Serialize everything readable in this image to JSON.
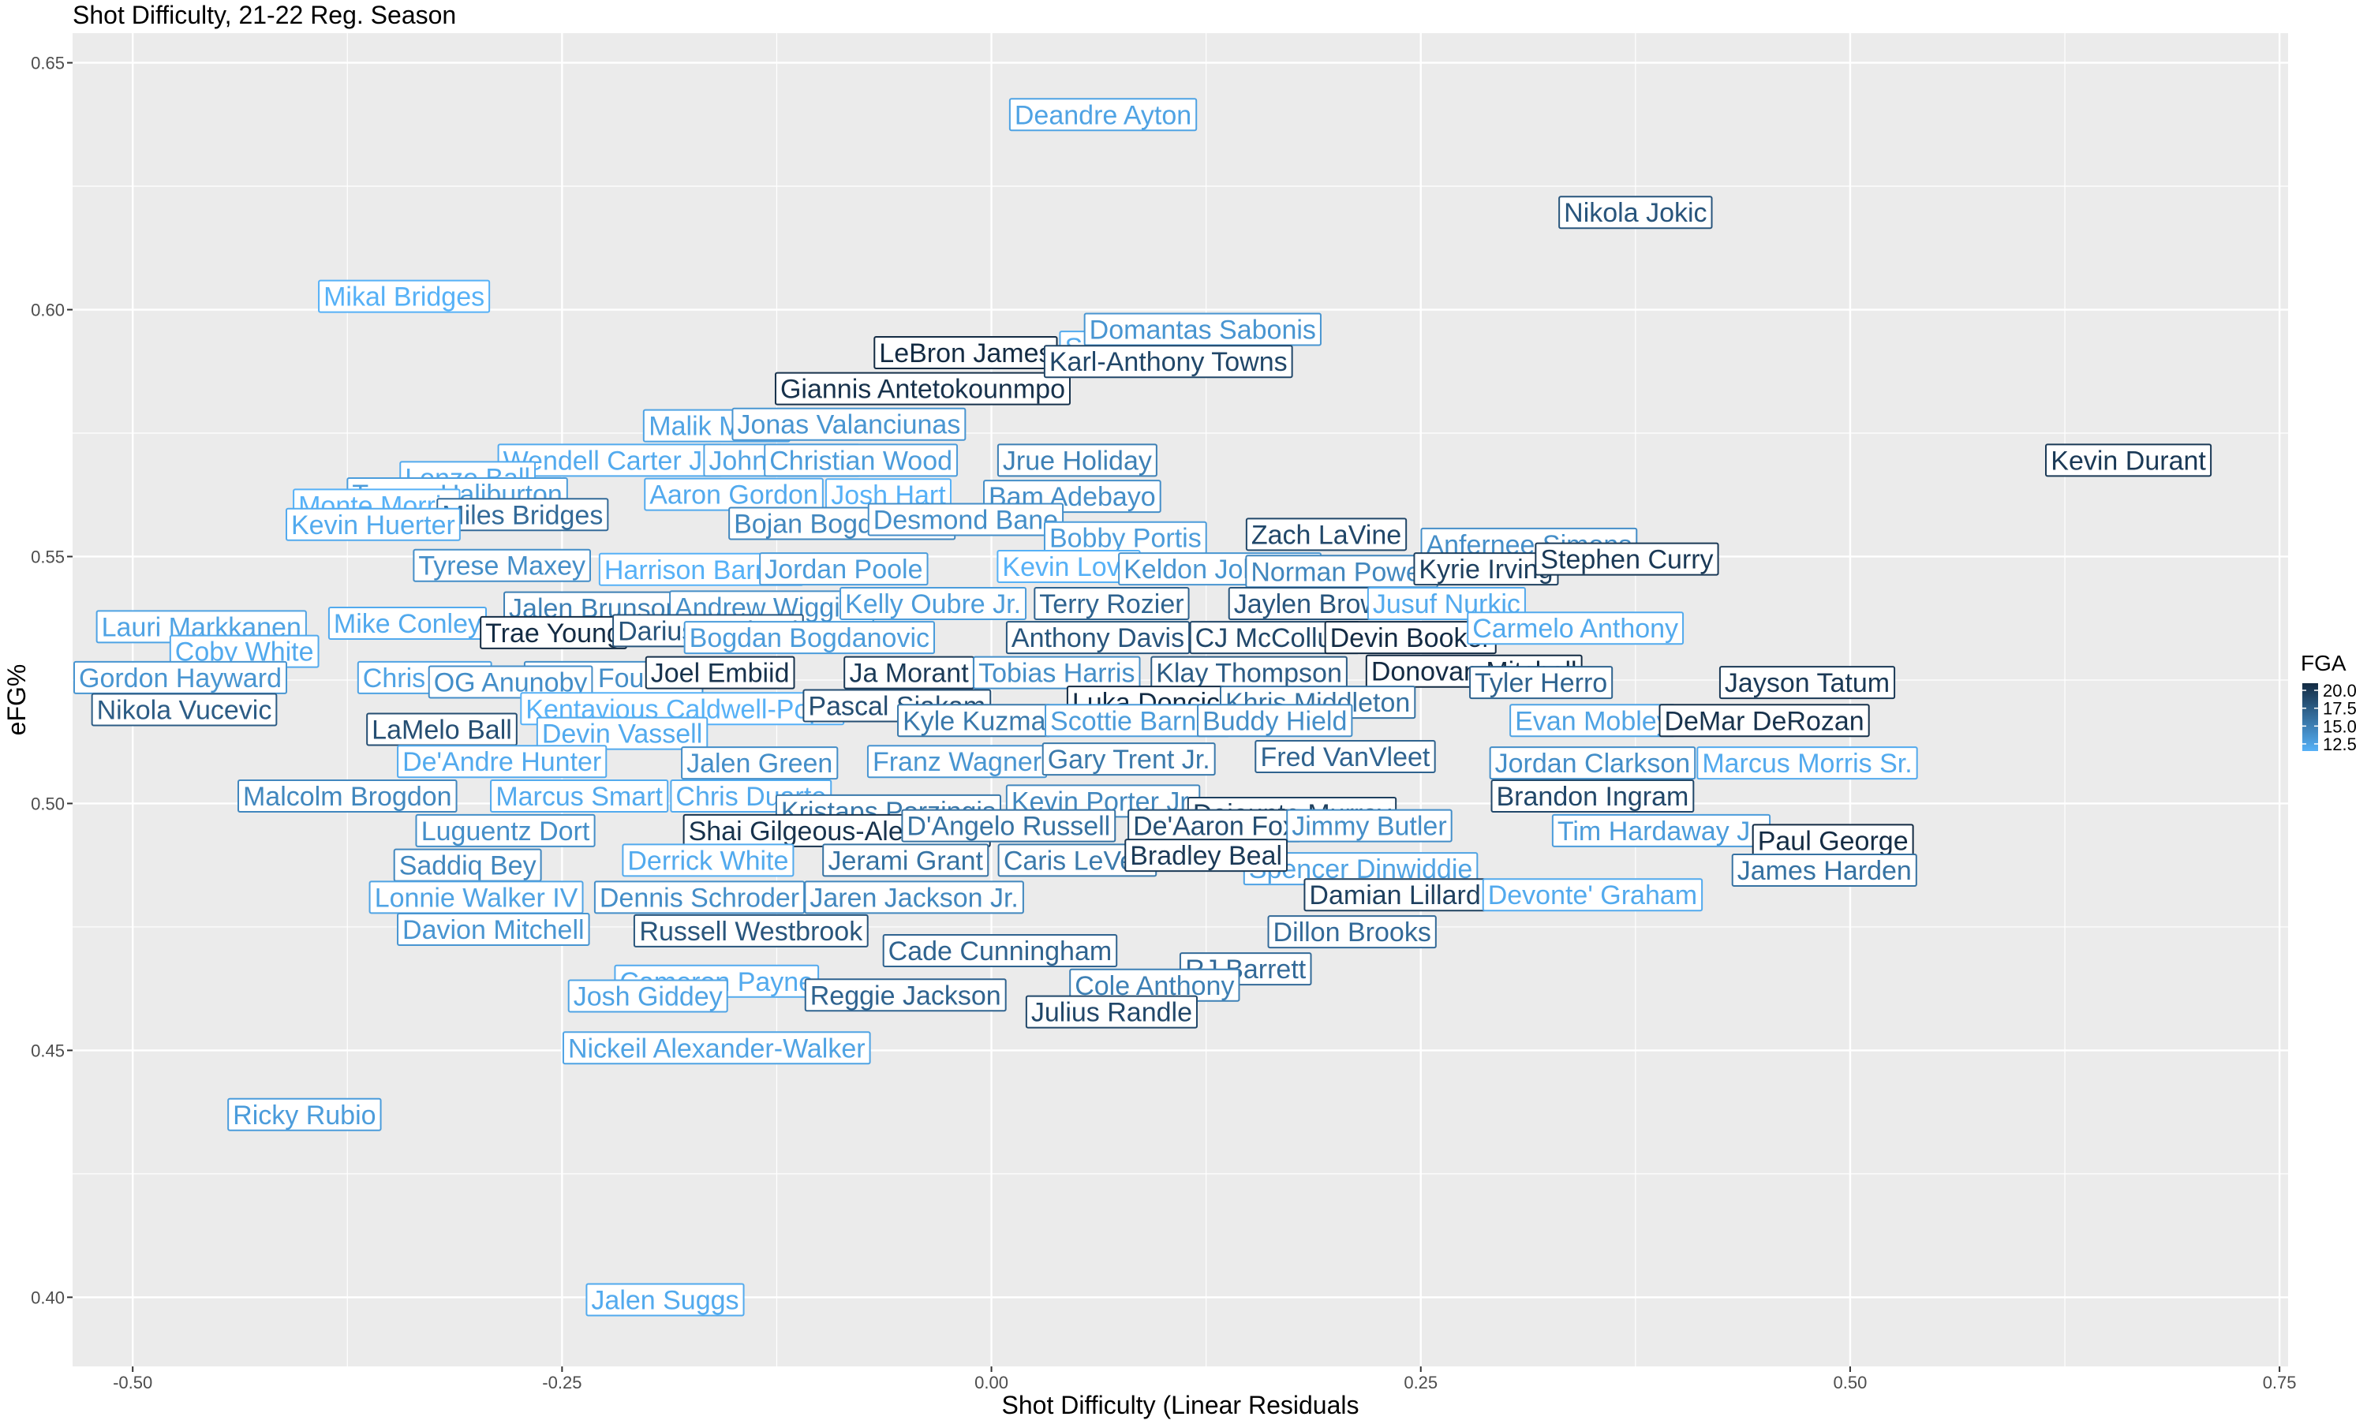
{
  "chart_data": {
    "type": "scatter",
    "title": "Shot Difficulty, 21-22 Reg. Season",
    "xlabel": "Shot Difficulty (Linear Residuals",
    "ylabel": "eFG%",
    "xlim": [
      -0.535,
      0.755
    ],
    "ylim": [
      0.386,
      0.656
    ],
    "xticks": [
      -0.5,
      -0.25,
      0.0,
      0.25,
      0.5,
      0.75
    ],
    "xtick_labels": [
      "-0.50",
      "-0.25",
      "0.00",
      "0.25",
      "0.50",
      "0.75"
    ],
    "yticks": [
      0.4,
      0.45,
      0.5,
      0.55,
      0.6,
      0.65
    ],
    "ytick_labels": [
      "0.40",
      "0.45",
      "0.50",
      "0.55",
      "0.60",
      "0.65"
    ],
    "grid": true,
    "background": "#ebebeb",
    "grid_color": "#ffffff",
    "legend": {
      "title": "FGA",
      "placement": "right",
      "min": 11.5,
      "max": 21.0,
      "breaks": [
        12.5,
        15.0,
        17.5,
        20.0
      ],
      "break_labels": [
        "12.5",
        "15.0",
        "17.5",
        "20.0"
      ],
      "color_low": "#56b1f7",
      "color_high": "#132b43"
    },
    "points": [
      {
        "name": "Deandre Ayton",
        "x": 0.065,
        "y": 0.6395,
        "fga": 12.5
      },
      {
        "name": "Nikola Jokic",
        "x": 0.375,
        "y": 0.6197,
        "fga": 18.0
      },
      {
        "name": "Mikal Bridges",
        "x": -0.342,
        "y": 0.6027,
        "fga": 11.5
      },
      {
        "name": "Seth Curry",
        "x": 0.08,
        "y": 0.5924,
        "fga": 12.0
      },
      {
        "name": "Domantas Sabonis",
        "x": 0.123,
        "y": 0.596,
        "fga": 13.5
      },
      {
        "name": "LeBron James",
        "x": -0.015,
        "y": 0.5913,
        "fga": 21.0
      },
      {
        "name": "Giannis Antetokounmpo",
        "x": -0.04,
        "y": 0.584,
        "fga": 20.5
      },
      {
        "name": "Karl-Anthony Towns",
        "x": 0.103,
        "y": 0.5895,
        "fga": 19.0
      },
      {
        "name": "Malik Monk",
        "x": -0.16,
        "y": 0.5765,
        "fga": 12.5
      },
      {
        "name": "Jonas Valanciunas",
        "x": -0.083,
        "y": 0.5768,
        "fga": 13.5
      },
      {
        "name": "Wendell Carter Jr.",
        "x": -0.222,
        "y": 0.5695,
        "fga": 12.0
      },
      {
        "name": "John Collins",
        "x": -0.122,
        "y": 0.5695,
        "fga": 12.5
      },
      {
        "name": "Christian Wood",
        "x": -0.076,
        "y": 0.5695,
        "fga": 13.0
      },
      {
        "name": "Jrue Holiday",
        "x": 0.05,
        "y": 0.5695,
        "fga": 15.0
      },
      {
        "name": "Kevin Durant",
        "x": 0.662,
        "y": 0.5695,
        "fga": 20.0
      },
      {
        "name": "Lonzo Ball",
        "x": -0.305,
        "y": 0.566,
        "fga": 12.0
      },
      {
        "name": "Tyrese Haliburton",
        "x": -0.311,
        "y": 0.5627,
        "fga": 13.0
      },
      {
        "name": "Aaron Gordon",
        "x": -0.15,
        "y": 0.5626,
        "fga": 12.0
      },
      {
        "name": "Josh Hart",
        "x": -0.06,
        "y": 0.5625,
        "fga": 11.5
      },
      {
        "name": "Bam Adebayo",
        "x": 0.047,
        "y": 0.5622,
        "fga": 14.0
      },
      {
        "name": "Monte Morris",
        "x": -0.358,
        "y": 0.5604,
        "fga": 11.5
      },
      {
        "name": "Miles Bridges",
        "x": -0.273,
        "y": 0.5585,
        "fga": 16.5
      },
      {
        "name": "Bojan Bogdanovic",
        "x": -0.087,
        "y": 0.5567,
        "fga": 14.5
      },
      {
        "name": "Desmond Bane",
        "x": -0.015,
        "y": 0.5575,
        "fga": 14.0
      },
      {
        "name": "Bobby Portis",
        "x": 0.078,
        "y": 0.5538,
        "fga": 13.0
      },
      {
        "name": "Zach LaVine",
        "x": 0.195,
        "y": 0.5545,
        "fga": 19.0
      },
      {
        "name": "Anfernee Simons",
        "x": 0.313,
        "y": 0.5525,
        "fga": 14.0
      },
      {
        "name": "Kevin Huerter",
        "x": -0.36,
        "y": 0.5565,
        "fga": 12.0
      },
      {
        "name": "Tyrese Maxey",
        "x": -0.285,
        "y": 0.5482,
        "fga": 14.0
      },
      {
        "name": "Harrison Barnes",
        "x": -0.169,
        "y": 0.5474,
        "fga": 11.5
      },
      {
        "name": "Jordan Poole",
        "x": -0.086,
        "y": 0.5475,
        "fga": 13.0
      },
      {
        "name": "Kevin Love",
        "x": 0.045,
        "y": 0.548,
        "fga": 11.5
      },
      {
        "name": "Keldon Johnson",
        "x": 0.133,
        "y": 0.5475,
        "fga": 13.5
      },
      {
        "name": "Norman Powell",
        "x": 0.204,
        "y": 0.547,
        "fga": 14.5
      },
      {
        "name": "Kyrie Irving",
        "x": 0.288,
        "y": 0.5475,
        "fga": 19.5
      },
      {
        "name": "Stephen Curry",
        "x": 0.37,
        "y": 0.5495,
        "fga": 20.0
      },
      {
        "name": "Lauri Markkanen",
        "x": -0.46,
        "y": 0.5358,
        "fga": 12.5
      },
      {
        "name": "Mike Conley",
        "x": -0.34,
        "y": 0.5365,
        "fga": 12.0
      },
      {
        "name": "Jalen Brunson",
        "x": -0.231,
        "y": 0.5396,
        "fga": 15.0
      },
      {
        "name": "Andrew Wiggins",
        "x": -0.128,
        "y": 0.5398,
        "fga": 14.0
      },
      {
        "name": "Kelly Oubre Jr.",
        "x": -0.034,
        "y": 0.5405,
        "fga": 13.0
      },
      {
        "name": "Terry Rozier",
        "x": 0.07,
        "y": 0.5405,
        "fga": 17.0
      },
      {
        "name": "Jaylen Brown",
        "x": 0.188,
        "y": 0.5405,
        "fga": 18.0
      },
      {
        "name": "Jusuf Nurkic",
        "x": 0.265,
        "y": 0.5405,
        "fga": 12.0
      },
      {
        "name": "Coby White",
        "x": -0.435,
        "y": 0.5308,
        "fga": 12.0
      },
      {
        "name": "Trae Young",
        "x": -0.255,
        "y": 0.5346,
        "fga": 21.0
      },
      {
        "name": "Darius Garland",
        "x": -0.165,
        "y": 0.535,
        "fga": 18.0
      },
      {
        "name": "Bogdan Bogdanovic",
        "x": -0.106,
        "y": 0.5336,
        "fga": 13.0
      },
      {
        "name": "Anthony Davis",
        "x": 0.062,
        "y": 0.5336,
        "fga": 18.0
      },
      {
        "name": "CJ McCollum",
        "x": 0.165,
        "y": 0.5336,
        "fga": 19.0
      },
      {
        "name": "Devin Booker",
        "x": 0.244,
        "y": 0.5336,
        "fga": 21.0
      },
      {
        "name": "Carmelo Anthony",
        "x": 0.34,
        "y": 0.5355,
        "fga": 12.0
      },
      {
        "name": "Gordon Hayward",
        "x": -0.475,
        "y": 0.5255,
        "fga": 13.5
      },
      {
        "name": "Chris Paul",
        "x": -0.33,
        "y": 0.5255,
        "fga": 12.5
      },
      {
        "name": "Evan Fournier",
        "x": -0.22,
        "y": 0.5255,
        "fga": 14.0
      },
      {
        "name": "Joel Embiid",
        "x": -0.158,
        "y": 0.5265,
        "fga": 20.5
      },
      {
        "name": "Ja Morant",
        "x": -0.048,
        "y": 0.5265,
        "fga": 20.0
      },
      {
        "name": "Tobias Harris",
        "x": 0.038,
        "y": 0.5265,
        "fga": 14.0
      },
      {
        "name": "Klay Thompson",
        "x": 0.15,
        "y": 0.5265,
        "fga": 17.5
      },
      {
        "name": "Donovan Mitchell",
        "x": 0.281,
        "y": 0.5268,
        "fga": 21.0
      },
      {
        "name": "Nikola Vucevic",
        "x": -0.47,
        "y": 0.519,
        "fga": 17.5
      },
      {
        "name": "OG Anunoby",
        "x": -0.28,
        "y": 0.5246,
        "fga": 14.0
      },
      {
        "name": "Kentavious Caldwell-Pope",
        "x": -0.18,
        "y": 0.5192,
        "fga": 11.5
      },
      {
        "name": "Pascal Siakam",
        "x": -0.055,
        "y": 0.5198,
        "fga": 18.5
      },
      {
        "name": "Luka Doncic",
        "x": 0.09,
        "y": 0.5205,
        "fga": 21.0
      },
      {
        "name": "Khris Middleton",
        "x": 0.19,
        "y": 0.5205,
        "fga": 16.0
      },
      {
        "name": "Tyler Herro",
        "x": 0.32,
        "y": 0.5245,
        "fga": 17.0
      },
      {
        "name": "Jayson Tatum",
        "x": 0.475,
        "y": 0.5245,
        "fga": 20.0
      },
      {
        "name": "LaMelo Ball",
        "x": -0.32,
        "y": 0.515,
        "fga": 18.5
      },
      {
        "name": "Devin Vassell",
        "x": -0.215,
        "y": 0.5142,
        "fga": 12.0
      },
      {
        "name": "Kyle Kuzma",
        "x": -0.01,
        "y": 0.5168,
        "fga": 15.5
      },
      {
        "name": "Scottie Barnes",
        "x": 0.085,
        "y": 0.5168,
        "fga": 13.0
      },
      {
        "name": "Buddy Hield",
        "x": 0.165,
        "y": 0.5168,
        "fga": 14.0
      },
      {
        "name": "Evan Mobley",
        "x": 0.35,
        "y": 0.5168,
        "fga": 12.5
      },
      {
        "name": "DeMar DeRozan",
        "x": 0.45,
        "y": 0.5168,
        "fga": 20.5
      },
      {
        "name": "De'Andre Hunter",
        "x": -0.285,
        "y": 0.5085,
        "fga": 12.0
      },
      {
        "name": "Jalen Green",
        "x": -0.135,
        "y": 0.5082,
        "fga": 14.0
      },
      {
        "name": "Franz Wagner",
        "x": -0.02,
        "y": 0.5085,
        "fga": 13.5
      },
      {
        "name": "Gary Trent Jr.",
        "x": 0.08,
        "y": 0.509,
        "fga": 15.5
      },
      {
        "name": "Fred VanVleet",
        "x": 0.206,
        "y": 0.5095,
        "fga": 17.0
      },
      {
        "name": "Jordan Clarkson",
        "x": 0.35,
        "y": 0.5082,
        "fga": 14.0
      },
      {
        "name": "Marcus Morris Sr.",
        "x": 0.475,
        "y": 0.5082,
        "fga": 12.0
      },
      {
        "name": "Malcolm Brogdon",
        "x": -0.375,
        "y": 0.5015,
        "fga": 14.5
      },
      {
        "name": "Marcus Smart",
        "x": -0.24,
        "y": 0.5015,
        "fga": 12.0
      },
      {
        "name": "Chris Duarte",
        "x": -0.14,
        "y": 0.5015,
        "fga": 12.0
      },
      {
        "name": "Kristaps Porzingis",
        "x": -0.06,
        "y": 0.4985,
        "fga": 15.5
      },
      {
        "name": "Kevin Porter Jr.",
        "x": 0.065,
        "y": 0.5005,
        "fga": 14.5
      },
      {
        "name": "Dejounte Murray",
        "x": 0.175,
        "y": 0.498,
        "fga": 19.5
      },
      {
        "name": "Brandon Ingram",
        "x": 0.35,
        "y": 0.5015,
        "fga": 19.0
      },
      {
        "name": "Luguentz Dort",
        "x": -0.283,
        "y": 0.4945,
        "fga": 14.0
      },
      {
        "name": "Shai Gilgeous-Alexander",
        "x": -0.09,
        "y": 0.4945,
        "fga": 20.5
      },
      {
        "name": "D'Angelo Russell",
        "x": 0.01,
        "y": 0.4955,
        "fga": 16.0
      },
      {
        "name": "De'Aaron Fox",
        "x": 0.13,
        "y": 0.4955,
        "fga": 18.5
      },
      {
        "name": "Jimmy Butler",
        "x": 0.22,
        "y": 0.4955,
        "fga": 14.0
      },
      {
        "name": "Tim Hardaway Jr.",
        "x": 0.39,
        "y": 0.4945,
        "fga": 13.0
      },
      {
        "name": "Paul George",
        "x": 0.49,
        "y": 0.4925,
        "fga": 21.0
      },
      {
        "name": "Saddiq Bey",
        "x": -0.305,
        "y": 0.4875,
        "fga": 14.5
      },
      {
        "name": "Derrick White",
        "x": -0.165,
        "y": 0.4885,
        "fga": 12.0
      },
      {
        "name": "Jerami Grant",
        "x": -0.05,
        "y": 0.4885,
        "fga": 16.0
      },
      {
        "name": "Caris LeVert",
        "x": 0.05,
        "y": 0.4885,
        "fga": 15.5
      },
      {
        "name": "Spencer Dinwiddie",
        "x": 0.215,
        "y": 0.4868,
        "fga": 12.5
      },
      {
        "name": "James Harden",
        "x": 0.485,
        "y": 0.4865,
        "fga": 16.0
      },
      {
        "name": "Lonnie Walker IV",
        "x": -0.3,
        "y": 0.481,
        "fga": 12.5
      },
      {
        "name": "Dennis Schroder",
        "x": -0.17,
        "y": 0.481,
        "fga": 14.0
      },
      {
        "name": "Jaren Jackson Jr.",
        "x": -0.045,
        "y": 0.481,
        "fga": 14.5
      },
      {
        "name": "Bradley Beal",
        "x": 0.125,
        "y": 0.4895,
        "fga": 20.0
      },
      {
        "name": "Damian Lillard",
        "x": 0.235,
        "y": 0.4815,
        "fga": 19.5
      },
      {
        "name": "Devonte' Graham",
        "x": 0.35,
        "y": 0.4815,
        "fga": 12.0
      },
      {
        "name": "Russell Westbrook",
        "x": -0.14,
        "y": 0.4742,
        "fga": 18.0
      },
      {
        "name": "Dillon Brooks",
        "x": 0.21,
        "y": 0.474,
        "fga": 16.5
      },
      {
        "name": "Davion Mitchell",
        "x": -0.29,
        "y": 0.4745,
        "fga": 13.5
      },
      {
        "name": "Cade Cunningham",
        "x": 0.005,
        "y": 0.4702,
        "fga": 17.0
      },
      {
        "name": "RJ Barrett",
        "x": 0.148,
        "y": 0.4665,
        "fga": 16.5
      },
      {
        "name": "Cameron Payne",
        "x": -0.16,
        "y": 0.464,
        "fga": 12.0
      },
      {
        "name": "Cole Anthony",
        "x": 0.095,
        "y": 0.4632,
        "fga": 15.0
      },
      {
        "name": "Josh Giddey",
        "x": -0.2,
        "y": 0.461,
        "fga": 12.5
      },
      {
        "name": "Reggie Jackson",
        "x": -0.05,
        "y": 0.4612,
        "fga": 17.0
      },
      {
        "name": "Julius Randle",
        "x": 0.07,
        "y": 0.4578,
        "fga": 19.0
      },
      {
        "name": "Nickeil Alexander-Walker",
        "x": -0.16,
        "y": 0.4505,
        "fga": 12.5
      },
      {
        "name": "Ricky Rubio",
        "x": -0.4,
        "y": 0.437,
        "fga": 13.0
      },
      {
        "name": "Jalen Suggs",
        "x": -0.19,
        "y": 0.3995,
        "fga": 12.0
      }
    ]
  }
}
